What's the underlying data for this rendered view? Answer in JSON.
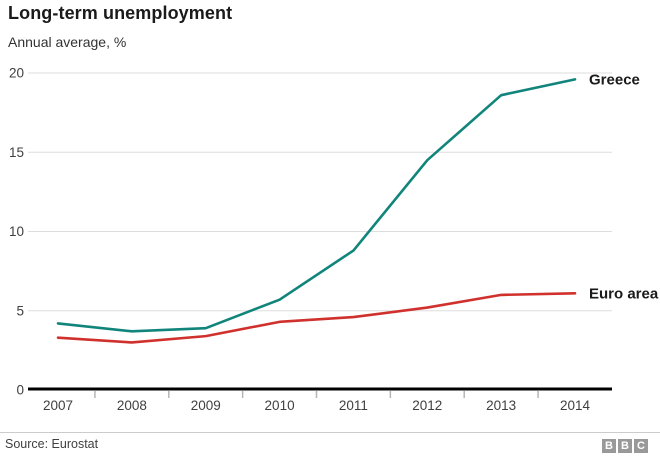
{
  "header": {
    "title": "Long-term unemployment",
    "subtitle": "Annual average, %"
  },
  "chart_data": {
    "type": "line",
    "categories": [
      "2007",
      "2008",
      "2009",
      "2010",
      "2011",
      "2012",
      "2013",
      "2014"
    ],
    "series": [
      {
        "name": "Greece",
        "color": "#11857C",
        "values": [
          4.2,
          3.7,
          3.9,
          5.7,
          8.8,
          14.5,
          18.6,
          19.6
        ]
      },
      {
        "name": "Euro area",
        "color": "#D0312D",
        "values": [
          3.3,
          3.0,
          3.4,
          4.3,
          4.6,
          5.2,
          6.0,
          6.1
        ]
      }
    ],
    "title": "Long-term unemployment",
    "subtitle": "Annual average, %",
    "xlabel": "",
    "ylabel": "",
    "ylim": [
      0,
      20
    ],
    "yticks": [
      0,
      5,
      10,
      15,
      20
    ],
    "grid": true,
    "legend_position": "line-end-labels"
  },
  "footer": {
    "source": "Source: Eurostat",
    "logo_letters": [
      "B",
      "B",
      "C"
    ]
  }
}
